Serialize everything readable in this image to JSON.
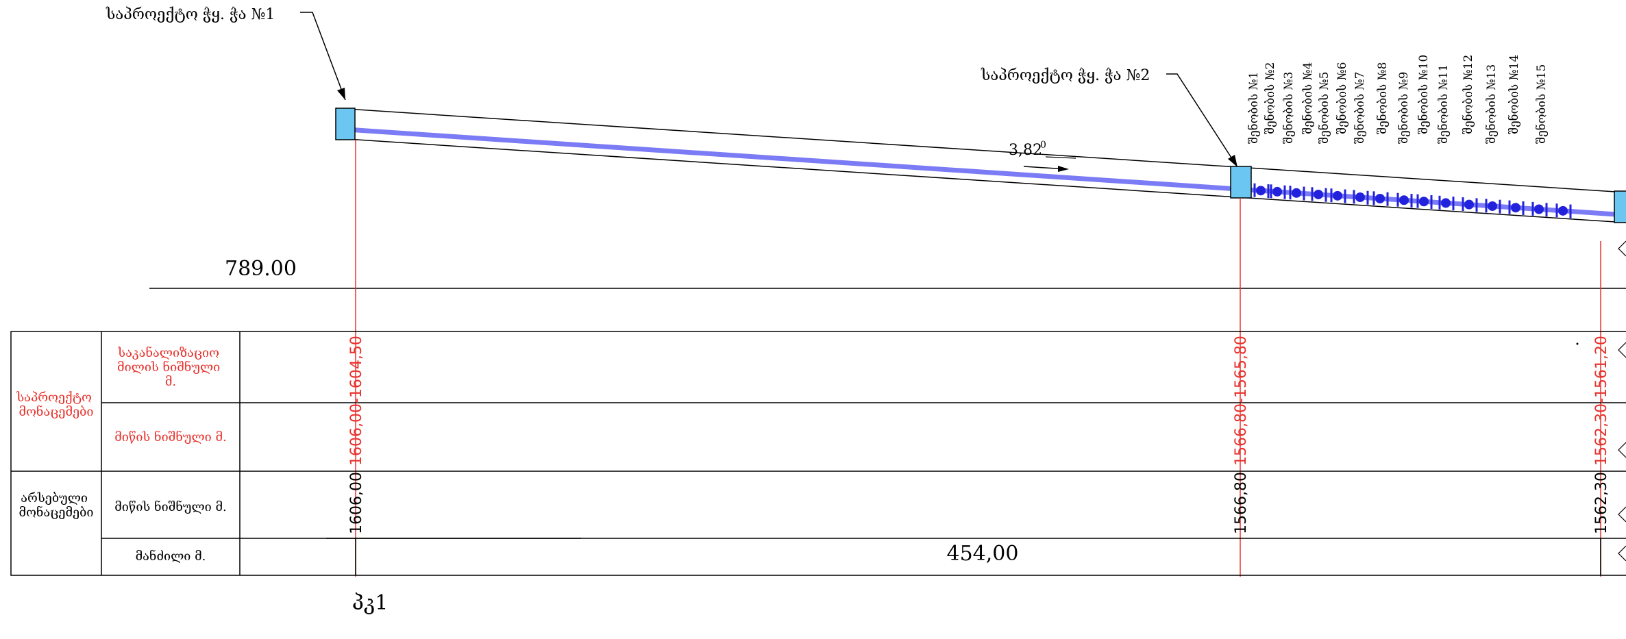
{
  "title_ref": "პკ1",
  "ref_level": "789.00",
  "callouts": {
    "well1": "საპროექტო ჭყ. ჭა №1",
    "well2": "საპროექტო ჭყ. ჭა №2"
  },
  "slope": {
    "value": "3,82",
    "sup": "0"
  },
  "pipe_color": "#7b7bf5",
  "design_line_color": "#e8322d",
  "table": {
    "group_design": "საპროექტო\nმონაცემები",
    "group_existing": "არსებული\nმონაცემები",
    "row_sewer_bottom": "საკანალიზაციო\nმილის ნიშნული\nმ.",
    "row_ground_design": "მიწის ნიშნული მ.",
    "row_ground_existing": "მიწის ნიშნული მ.",
    "row_distance": "მანძილი მ."
  },
  "stations": [
    {
      "design_top": "1606,00-1604,50",
      "existing": "1606,00"
    },
    {
      "design_top": "1566,80-1565,80",
      "existing": "1566,80"
    },
    {
      "design_top": "1562,30-1561,20",
      "existing": "1562,30"
    }
  ],
  "design_values_sep": [
    {
      "ground": "1606,00",
      "sewer": "1604,50"
    },
    {
      "ground": "1566,80",
      "sewer": "1565,80"
    },
    {
      "ground": "1562,30",
      "sewer": "1561,20"
    }
  ],
  "distance": "454,00",
  "connections": [
    "შენობის №1",
    "შენობის №2",
    "შენობის №3",
    "შენობის №4",
    "შენობის №5",
    "შენობის №6",
    "შენობის №7",
    "შენობის №8",
    "შენობის №9",
    "შენობის №10",
    "შენობის №11",
    "შენობის №12",
    "შენობის №13",
    "შენობის №14",
    "შენობის №15"
  ]
}
